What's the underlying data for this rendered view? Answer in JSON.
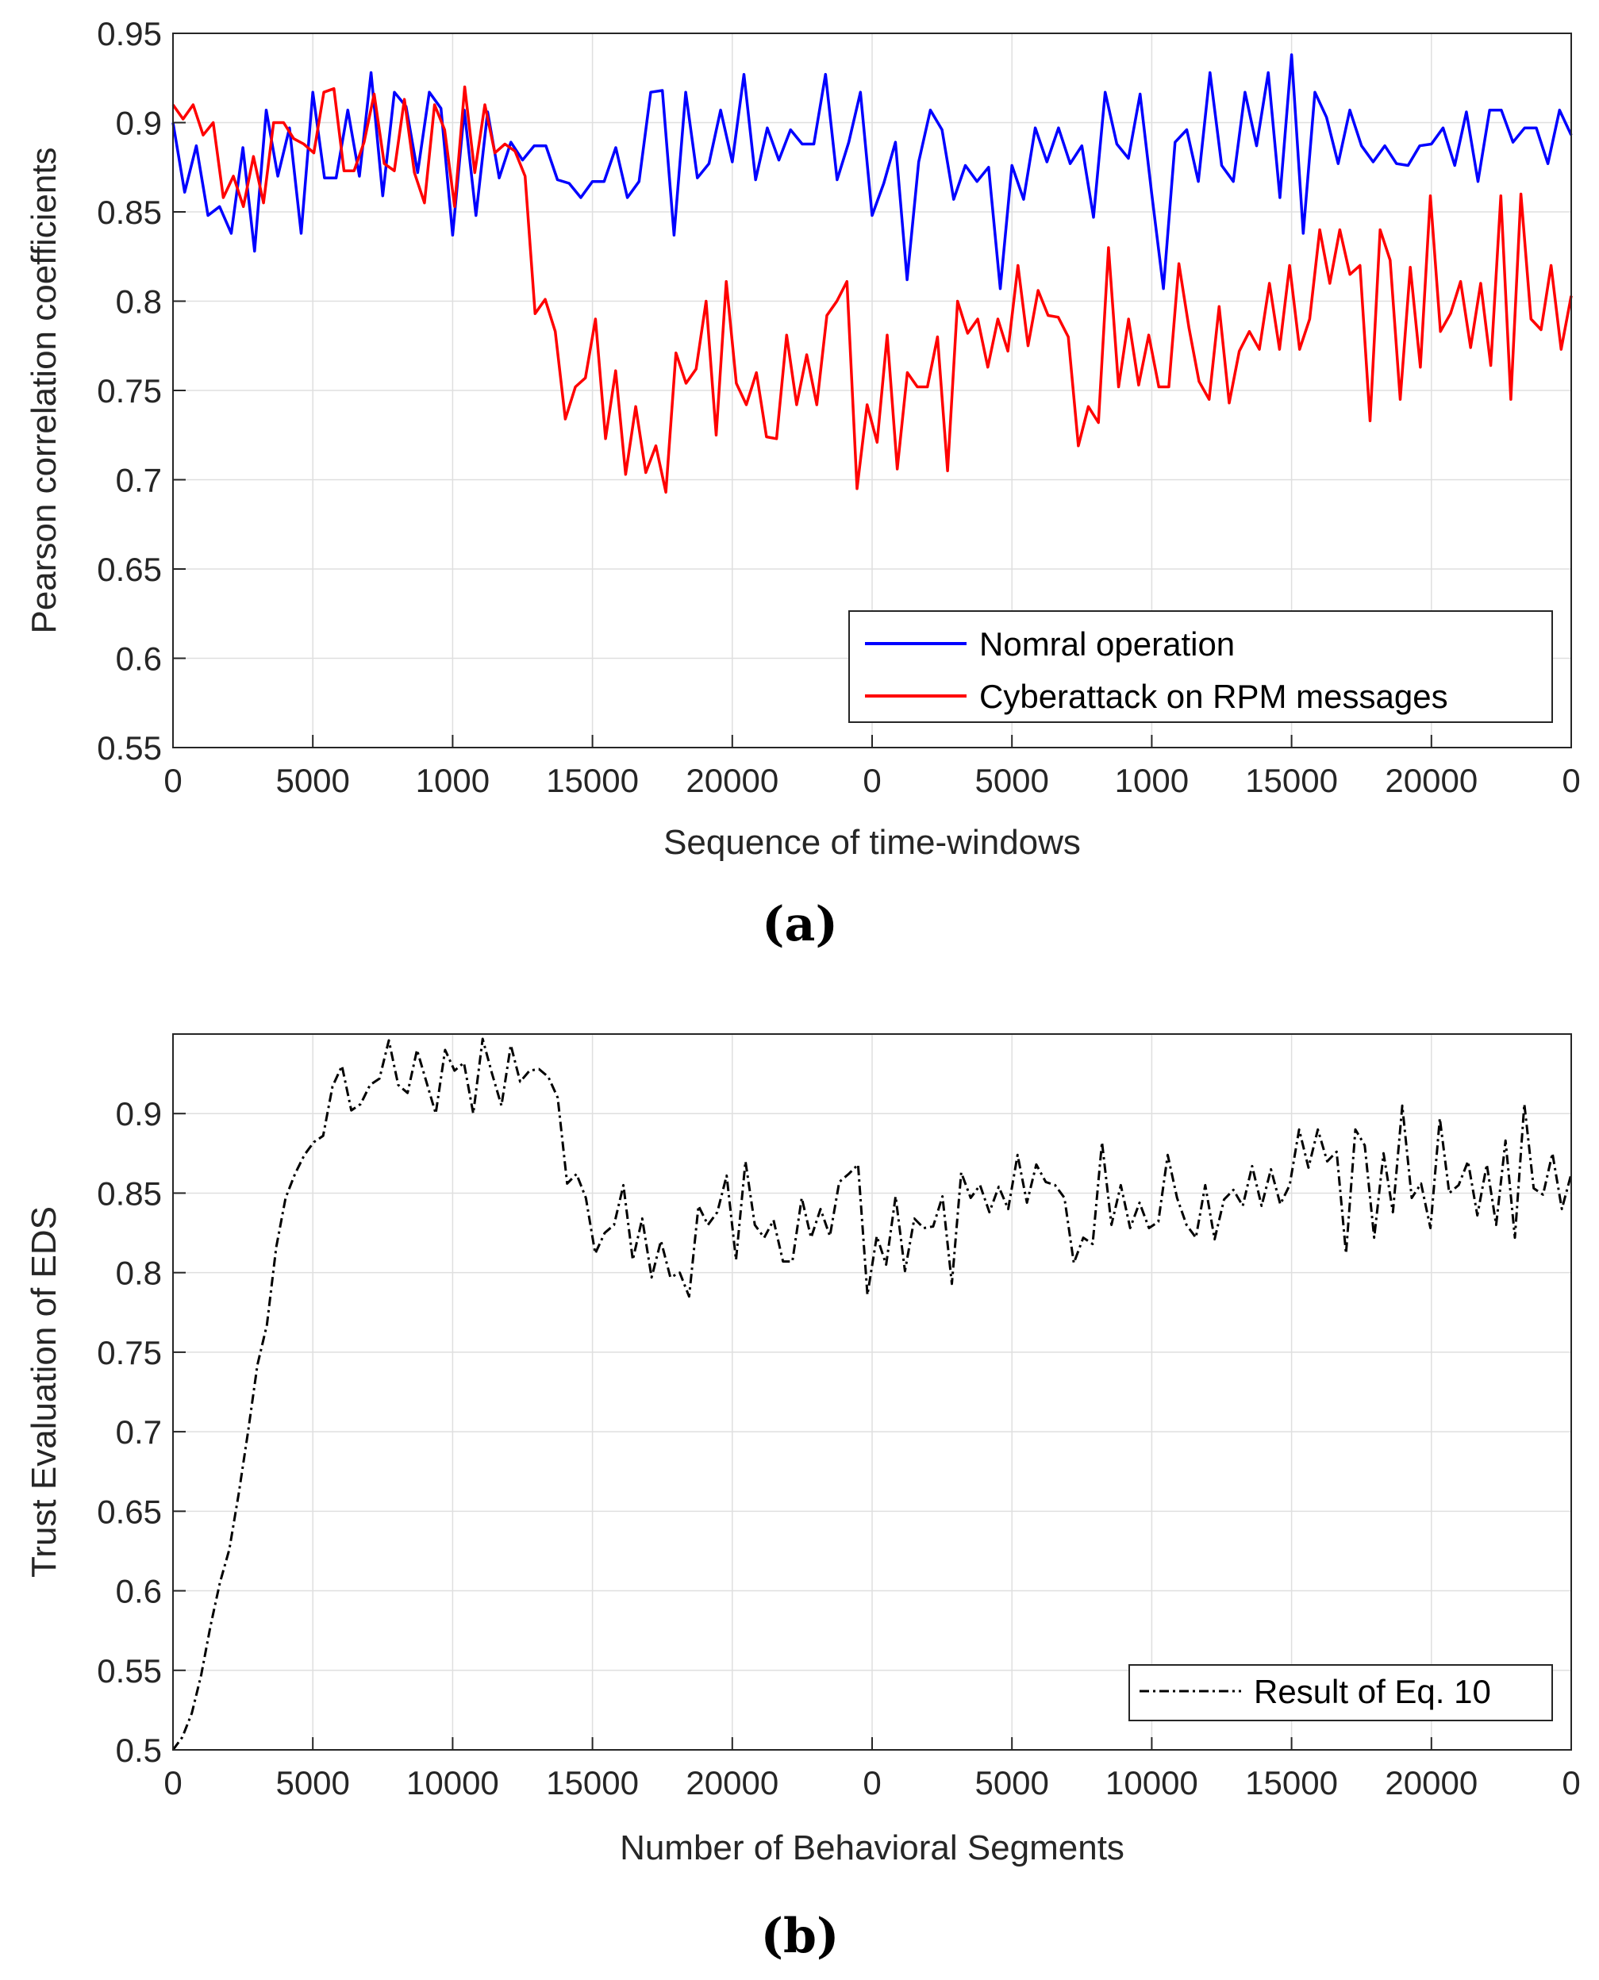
{
  "chart_data": [
    {
      "type": "line",
      "caption": "(a)",
      "xlabel": "Sequence of time-windows",
      "ylabel": "Pearson correlation coefficients",
      "ylim": [
        0.55,
        0.95
      ],
      "yticks": [
        "0.55",
        "0.6",
        "0.65",
        "0.7",
        "0.75",
        "0.8",
        "0.85",
        "0.9",
        "0.95"
      ],
      "xlim": [
        0,
        200
      ],
      "xtick_labels": [
        "0",
        "5000",
        "1000",
        "15000",
        "20000",
        "0",
        "5000",
        "1000",
        "15000",
        "20000",
        "0"
      ],
      "grid": true,
      "legend_position": "bottom-right",
      "series": [
        {
          "name": "Nomral operation",
          "color": "#0000ff",
          "style": "solid",
          "values": [
            0.9,
            0.861,
            0.887,
            0.848,
            0.853,
            0.838,
            0.886,
            0.828,
            0.907,
            0.87,
            0.897,
            0.838,
            0.917,
            0.869,
            0.869,
            0.907,
            0.87,
            0.928,
            0.859,
            0.917,
            0.909,
            0.872,
            0.917,
            0.908,
            0.837,
            0.907,
            0.848,
            0.906,
            0.869,
            0.889,
            0.879,
            0.887,
            0.887,
            0.868,
            0.866,
            0.858,
            0.867,
            0.867,
            0.886,
            0.858,
            0.867,
            0.917,
            0.918,
            0.837,
            0.917,
            0.869,
            0.877,
            0.907,
            0.878,
            0.927,
            0.868,
            0.897,
            0.879,
            0.896,
            0.888,
            0.888,
            0.927,
            0.868,
            0.889,
            0.917,
            0.848,
            0.866,
            0.889,
            0.812,
            0.878,
            0.907,
            0.896,
            0.857,
            0.876,
            0.867,
            0.875,
            0.807,
            0.876,
            0.857,
            0.897,
            0.878,
            0.897,
            0.877,
            0.887,
            0.847,
            0.917,
            0.888,
            0.88,
            0.916,
            0.86,
            0.807,
            0.889,
            0.896,
            0.867,
            0.928,
            0.876,
            0.867,
            0.917,
            0.887,
            0.928,
            0.858,
            0.938,
            0.838,
            0.917,
            0.903,
            0.877,
            0.907,
            0.887,
            0.878,
            0.887,
            0.877,
            0.876,
            0.887,
            0.888,
            0.897,
            0.876,
            0.906,
            0.867,
            0.907,
            0.907,
            0.889,
            0.897,
            0.897,
            0.877,
            0.907,
            0.893
          ]
        },
        {
          "name": "Cyberattack on RPM messages",
          "color": "#ff0000",
          "style": "solid",
          "values": [
            0.91,
            0.902,
            0.91,
            0.893,
            0.9,
            0.858,
            0.87,
            0.853,
            0.881,
            0.855,
            0.9,
            0.9,
            0.891,
            0.888,
            0.883,
            0.917,
            0.919,
            0.873,
            0.873,
            0.889,
            0.916,
            0.877,
            0.873,
            0.913,
            0.872,
            0.855,
            0.91,
            0.896,
            0.853,
            0.92,
            0.872,
            0.91,
            0.883,
            0.888,
            0.884,
            0.87,
            0.793,
            0.801,
            0.783,
            0.734,
            0.752,
            0.757,
            0.79,
            0.723,
            0.761,
            0.703,
            0.741,
            0.704,
            0.719,
            0.693,
            0.771,
            0.754,
            0.762,
            0.8,
            0.725,
            0.811,
            0.754,
            0.742,
            0.76,
            0.724,
            0.723,
            0.781,
            0.742,
            0.77,
            0.742,
            0.792,
            0.8,
            0.811,
            0.695,
            0.742,
            0.721,
            0.781,
            0.706,
            0.76,
            0.752,
            0.752,
            0.78,
            0.705,
            0.8,
            0.782,
            0.79,
            0.763,
            0.79,
            0.772,
            0.82,
            0.775,
            0.806,
            0.792,
            0.791,
            0.78,
            0.719,
            0.741,
            0.732,
            0.83,
            0.752,
            0.79,
            0.753,
            0.781,
            0.752,
            0.752,
            0.821,
            0.785,
            0.755,
            0.745,
            0.797,
            0.743,
            0.772,
            0.783,
            0.773,
            0.81,
            0.773,
            0.82,
            0.773,
            0.79,
            0.84,
            0.81,
            0.84,
            0.815,
            0.82,
            0.733,
            0.84,
            0.823,
            0.745,
            0.819,
            0.763,
            0.859,
            0.783,
            0.793,
            0.811,
            0.774,
            0.81,
            0.764,
            0.859,
            0.745,
            0.86,
            0.79,
            0.784,
            0.82,
            0.773,
            0.803
          ]
        }
      ]
    },
    {
      "type": "line",
      "caption": "(b)",
      "xlabel": "Number of Behavioral Segments",
      "ylabel": "Trust Evaluation of EDS",
      "ylim": [
        0.5,
        0.95
      ],
      "yticks": [
        "0.5",
        "0.55",
        "0.6",
        "0.65",
        "0.7",
        "0.75",
        "0.8",
        "0.85",
        "0.9"
      ],
      "xlim": [
        0,
        200
      ],
      "xtick_labels": [
        "0",
        "5000",
        "10000",
        "15000",
        "20000",
        "0",
        "5000",
        "10000",
        "15000",
        "20000",
        "0"
      ],
      "grid": true,
      "legend_position": "bottom-right",
      "series": [
        {
          "name": "Result of Eq. 10",
          "color": "#000000",
          "style": "dashdot",
          "values": [
            0.5,
            0.508,
            0.523,
            0.547,
            0.578,
            0.605,
            0.626,
            0.661,
            0.7,
            0.742,
            0.767,
            0.816,
            0.847,
            0.862,
            0.874,
            0.882,
            0.886,
            0.917,
            0.93,
            0.902,
            0.906,
            0.918,
            0.922,
            0.946,
            0.918,
            0.913,
            0.94,
            0.92,
            0.9,
            0.94,
            0.927,
            0.932,
            0.9,
            0.947,
            0.925,
            0.905,
            0.943,
            0.92,
            0.927,
            0.928,
            0.923,
            0.91,
            0.856,
            0.862,
            0.847,
            0.812,
            0.825,
            0.83,
            0.855,
            0.808,
            0.834,
            0.797,
            0.82,
            0.797,
            0.8,
            0.785,
            0.842,
            0.83,
            0.838,
            0.861,
            0.808,
            0.87,
            0.83,
            0.822,
            0.833,
            0.807,
            0.807,
            0.847,
            0.822,
            0.84,
            0.823,
            0.857,
            0.862,
            0.868,
            0.786,
            0.823,
            0.805,
            0.848,
            0.801,
            0.834,
            0.828,
            0.829,
            0.848,
            0.793,
            0.863,
            0.847,
            0.855,
            0.838,
            0.854,
            0.84,
            0.874,
            0.844,
            0.868,
            0.857,
            0.855,
            0.847,
            0.806,
            0.822,
            0.818,
            0.882,
            0.83,
            0.855,
            0.828,
            0.844,
            0.828,
            0.832,
            0.874,
            0.847,
            0.83,
            0.822,
            0.855,
            0.821,
            0.846,
            0.852,
            0.842,
            0.867,
            0.842,
            0.865,
            0.843,
            0.855,
            0.89,
            0.866,
            0.89,
            0.87,
            0.876,
            0.812,
            0.89,
            0.88,
            0.822,
            0.875,
            0.838,
            0.905,
            0.847,
            0.856,
            0.828,
            0.897,
            0.85,
            0.855,
            0.87,
            0.836,
            0.868,
            0.83,
            0.883,
            0.822,
            0.906,
            0.853,
            0.849,
            0.875,
            0.84,
            0.862
          ]
        }
      ]
    }
  ]
}
